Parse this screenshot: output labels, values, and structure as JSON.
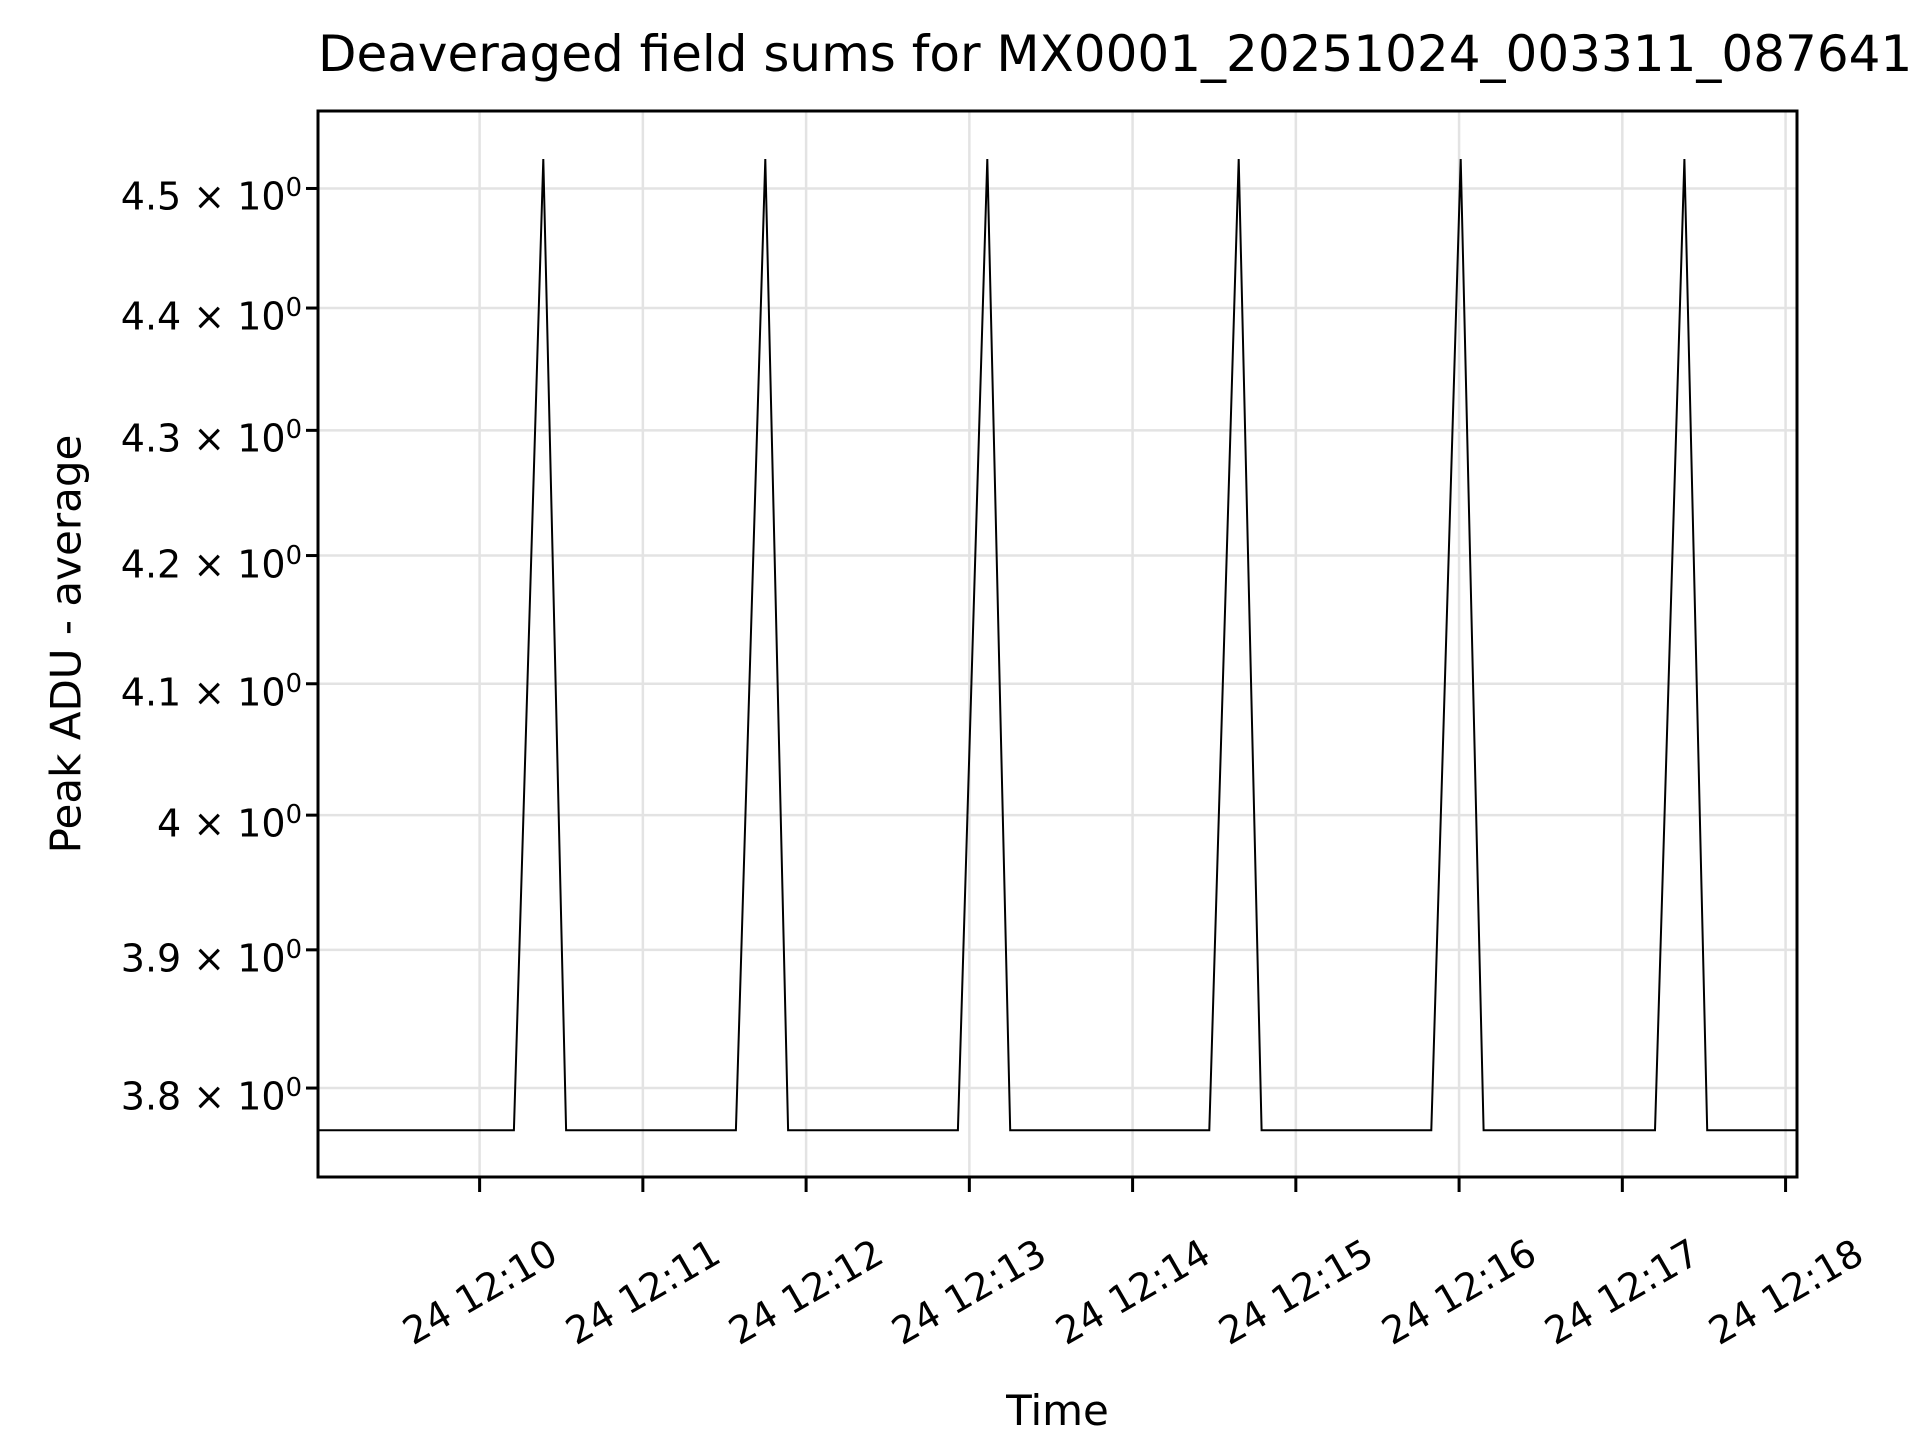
{
  "figure": {
    "title": "Deaveraged field sums for MX0001_20251024_003311_087641",
    "xlabel": "Time",
    "ylabel": "Peak ADU - average"
  },
  "chart_data": {
    "type": "line",
    "title": "Deaveraged field sums for MX0001_20251024_003311_087641",
    "xlabel": "Time",
    "ylabel": "Peak ADU - average",
    "yscale": "log",
    "grid": true,
    "legend": false,
    "background_color": "#ffffff",
    "line_color": "#000000",
    "grid_color": "#e3e3e3",
    "spine_color": "#000000",
    "x_axis": {
      "lim_minutes_after_12_00": [
        9.01,
        18.07
      ],
      "ticks": [
        {
          "t": 10,
          "label": "24 12:10"
        },
        {
          "t": 11,
          "label": "24 12:11"
        },
        {
          "t": 12,
          "label": "24 12:12"
        },
        {
          "t": 13,
          "label": "24 12:13"
        },
        {
          "t": 14,
          "label": "24 12:14"
        },
        {
          "t": 15,
          "label": "24 12:15"
        },
        {
          "t": 16,
          "label": "24 12:16"
        },
        {
          "t": 17,
          "label": "24 12:17"
        },
        {
          "t": 18,
          "label": "24 12:18"
        }
      ]
    },
    "y_axis": {
      "lim": [
        3.737,
        4.566
      ],
      "ticks": [
        {
          "v": 3.8,
          "label": "3.8 × 10",
          "exp": "0"
        },
        {
          "v": 3.9,
          "label": "3.9 × 10",
          "exp": "0"
        },
        {
          "v": 4.0,
          "label": "4 × 10",
          "exp": "0"
        },
        {
          "v": 4.1,
          "label": "4.1 × 10",
          "exp": "0"
        },
        {
          "v": 4.2,
          "label": "4.2 × 10",
          "exp": "0"
        },
        {
          "v": 4.3,
          "label": "4.3 × 10",
          "exp": "0"
        },
        {
          "v": 4.4,
          "label": "4.4 × 10",
          "exp": "0"
        },
        {
          "v": 4.5,
          "label": "4.5 × 10",
          "exp": "0"
        }
      ]
    },
    "baseline_value": 3.77,
    "peak_value": 4.525,
    "peak_times_min": [
      10.39,
      11.75,
      13.11,
      14.65,
      16.01,
      17.38
    ],
    "series": [
      {
        "points": [
          [
            9.01,
            3.77
          ],
          [
            10.21,
            3.77
          ],
          [
            10.39,
            4.525
          ],
          [
            10.53,
            3.77
          ],
          [
            11.57,
            3.77
          ],
          [
            11.75,
            4.525
          ],
          [
            11.89,
            3.77
          ],
          [
            12.93,
            3.77
          ],
          [
            13.11,
            4.525
          ],
          [
            13.25,
            3.77
          ],
          [
            14.47,
            3.77
          ],
          [
            14.65,
            4.525
          ],
          [
            14.79,
            3.77
          ],
          [
            15.83,
            3.77
          ],
          [
            16.01,
            4.525
          ],
          [
            16.15,
            3.77
          ],
          [
            17.2,
            3.77
          ],
          [
            17.38,
            4.525
          ],
          [
            17.52,
            3.77
          ],
          [
            18.07,
            3.77
          ]
        ]
      }
    ]
  }
}
